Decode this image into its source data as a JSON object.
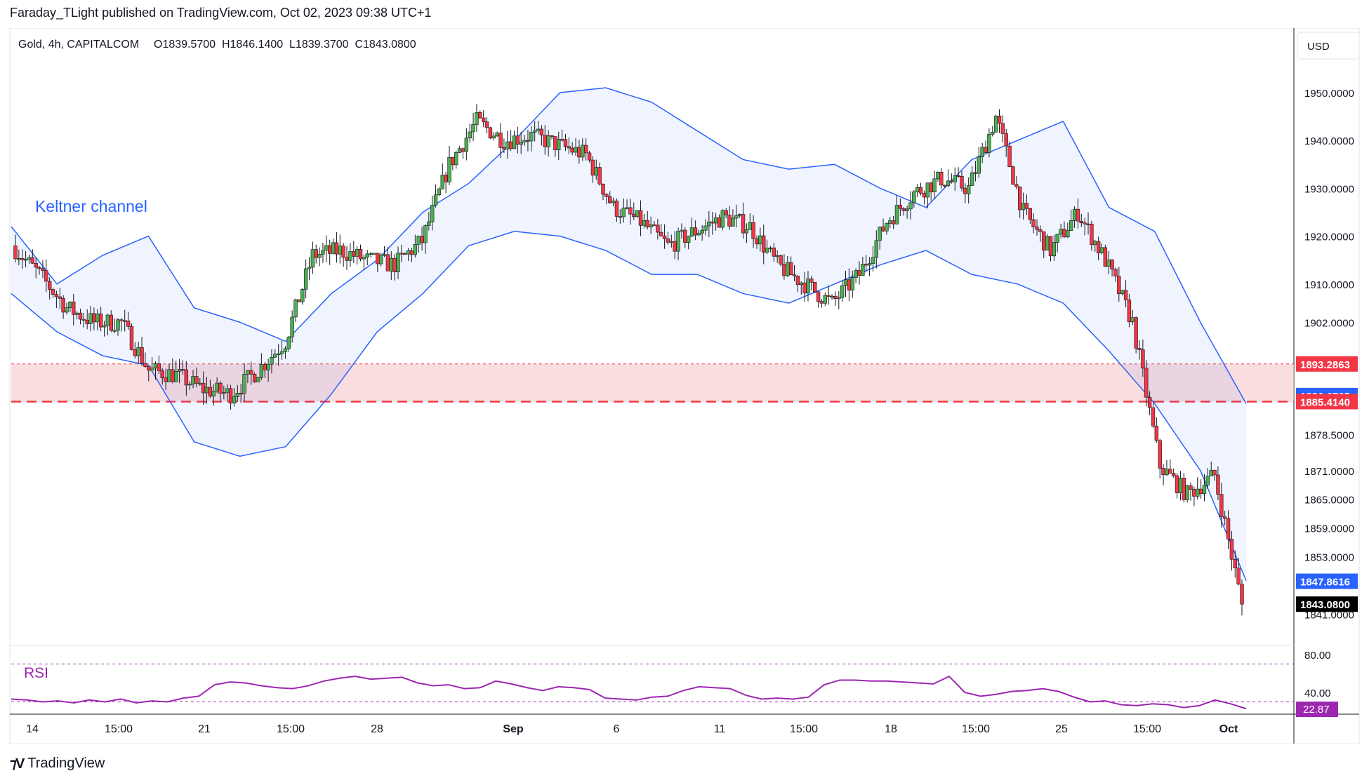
{
  "header": {
    "published": "Faraday_TLight published on TradingView.com, Oct 02, 2023 09:38 UTC+1"
  },
  "legend": {
    "symbol": "Gold, 4h, CAPITALCOM",
    "ohlc": "O1839.5700  H1846.1400  L1839.3700  C1843.0800"
  },
  "annotations": {
    "keltner": "Keltner channel",
    "rsi": "RSI"
  },
  "price_axis": {
    "currency": "USD",
    "ticks": [
      "1950.0000",
      "1940.0000",
      "1930.0000",
      "1920.0000",
      "1910.0000",
      "1902.0000",
      "1878.5000",
      "1871.0000",
      "1865.0000",
      "1859.0000",
      "1853.0000",
      "1841.0000"
    ],
    "price_labels": [
      {
        "text": "1893.2863",
        "color": "#f23645",
        "value": 1893.2863
      },
      {
        "text": "1886.6765",
        "color": "#2962ff",
        "value": 1886.6765
      },
      {
        "text": "1885.4140",
        "color": "#f23645",
        "value": 1885.414
      },
      {
        "text": "1847.8616",
        "color": "#2962ff",
        "value": 1847.8616
      },
      {
        "text": "1843.0800",
        "color": "#000000",
        "value": 1843.08
      }
    ]
  },
  "rsi_axis": {
    "ticks": [
      "80.00",
      "40.00"
    ],
    "value_label": {
      "text": "22.87",
      "color": "#9c27b0"
    }
  },
  "time_axis": {
    "labels": [
      "14",
      "15:00",
      "21",
      "15:00",
      "28",
      "Sep",
      "6",
      "11",
      "15:00",
      "18",
      "15:00",
      "25",
      "15:00",
      "Oct"
    ]
  },
  "footer": {
    "brand": "TradingView"
  },
  "colors": {
    "up": "#4caf50",
    "down": "#f23645",
    "keltner_line": "#2962ff",
    "keltner_fill": "#2962ff",
    "zone_fill": "#f7c6c9",
    "rsi_line": "#9c27b0"
  },
  "chart_data": {
    "type": "candlestick",
    "symbol": "Gold",
    "timeframe": "4h",
    "exchange": "CAPITALCOM",
    "last": {
      "open": 1839.57,
      "high": 1846.14,
      "low": 1839.37,
      "close": 1843.08
    },
    "support_zone": {
      "upper": 1893.2863,
      "lower": 1885.414
    },
    "keltner_upper_last": 1886.6765,
    "keltner_lower_last": 1847.8616,
    "close_path": [
      {
        "x": "Aug 10",
        "y": 1918
      },
      {
        "x": "Aug 11",
        "y": 1912
      },
      {
        "x": "Aug 13",
        "y": 1905
      },
      {
        "x": "Aug 14",
        "y": 1902
      },
      {
        "x": "Aug 15",
        "y": 1902
      },
      {
        "x": "Aug 16",
        "y": 1892
      },
      {
        "x": "Aug 17",
        "y": 1891
      },
      {
        "x": "Aug 18",
        "y": 1888
      },
      {
        "x": "Aug 20",
        "y": 1887
      },
      {
        "x": "Aug 21",
        "y": 1892
      },
      {
        "x": "Aug 22",
        "y": 1898
      },
      {
        "x": "Aug 23",
        "y": 1916
      },
      {
        "x": "Aug 24",
        "y": 1917
      },
      {
        "x": "Aug 25",
        "y": 1915
      },
      {
        "x": "Aug 27",
        "y": 1914
      },
      {
        "x": "Aug 28",
        "y": 1919
      },
      {
        "x": "Aug 29",
        "y": 1935
      },
      {
        "x": "Aug 30",
        "y": 1944
      },
      {
        "x": "Aug 31",
        "y": 1940
      },
      {
        "x": "Sep 1",
        "y": 1941
      },
      {
        "x": "Sep 3",
        "y": 1939
      },
      {
        "x": "Sep 4",
        "y": 1937
      },
      {
        "x": "Sep 5",
        "y": 1926
      },
      {
        "x": "Sep 6",
        "y": 1923
      },
      {
        "x": "Sep 7",
        "y": 1918
      },
      {
        "x": "Sep 8",
        "y": 1921
      },
      {
        "x": "Sep 10",
        "y": 1924
      },
      {
        "x": "Sep 11",
        "y": 1922
      },
      {
        "x": "Sep 12",
        "y": 1914
      },
      {
        "x": "Sep 13",
        "y": 1910
      },
      {
        "x": "Sep 14",
        "y": 1906
      },
      {
        "x": "Sep 15",
        "y": 1912
      },
      {
        "x": "Sep 17",
        "y": 1923
      },
      {
        "x": "Sep 18",
        "y": 1929
      },
      {
        "x": "Sep 19",
        "y": 1932
      },
      {
        "x": "Sep 20",
        "y": 1930
      },
      {
        "x": "Sep 21",
        "y": 1945
      },
      {
        "x": "Sep 22",
        "y": 1925
      },
      {
        "x": "Sep 24",
        "y": 1917
      },
      {
        "x": "Sep 25",
        "y": 1925
      },
      {
        "x": "Sep 26",
        "y": 1915
      },
      {
        "x": "Sep 27",
        "y": 1902
      },
      {
        "x": "Sep 28",
        "y": 1872
      },
      {
        "x": "Sep 29",
        "y": 1866
      },
      {
        "x": "Oct 1",
        "y": 1870
      },
      {
        "x": "Oct 2",
        "y": 1843.08
      }
    ],
    "keltner_upper": [
      1922,
      1910,
      1916,
      1920,
      1905,
      1902,
      1898,
      1908,
      1915,
      1925,
      1931,
      1940,
      1950,
      1951,
      1948,
      1942,
      1936,
      1934,
      1935,
      1930,
      1926,
      1936,
      1940,
      1944,
      1926,
      1921,
      1902,
      1885
    ],
    "keltner_lower": [
      1908,
      1900,
      1895,
      1893,
      1877,
      1874,
      1876,
      1887,
      1900,
      1908,
      1918,
      1921,
      1920,
      1917,
      1912,
      1912,
      1908,
      1906,
      1910,
      1914,
      1917,
      1912,
      1910,
      1906,
      1896,
      1885,
      1871,
      1848
    ],
    "rsi": {
      "overbought": 70,
      "oversold": 30,
      "last": 22.87,
      "values": [
        33,
        32,
        30,
        31,
        29,
        32,
        30,
        33,
        29,
        31,
        30,
        34,
        36,
        48,
        51,
        50,
        47,
        45,
        44,
        47,
        52,
        55,
        57,
        54,
        55,
        56,
        50,
        47,
        48,
        44,
        45,
        52,
        49,
        45,
        42,
        46,
        45,
        43,
        34,
        33,
        32,
        35,
        36,
        42,
        46,
        45,
        44,
        37,
        33,
        34,
        33,
        35,
        48,
        53,
        53,
        52,
        52,
        51,
        50,
        49,
        57,
        40,
        36,
        38,
        41,
        42,
        44,
        41,
        35,
        30,
        31,
        27,
        26,
        28,
        27,
        24,
        26,
        32,
        28,
        22.87
      ]
    }
  }
}
